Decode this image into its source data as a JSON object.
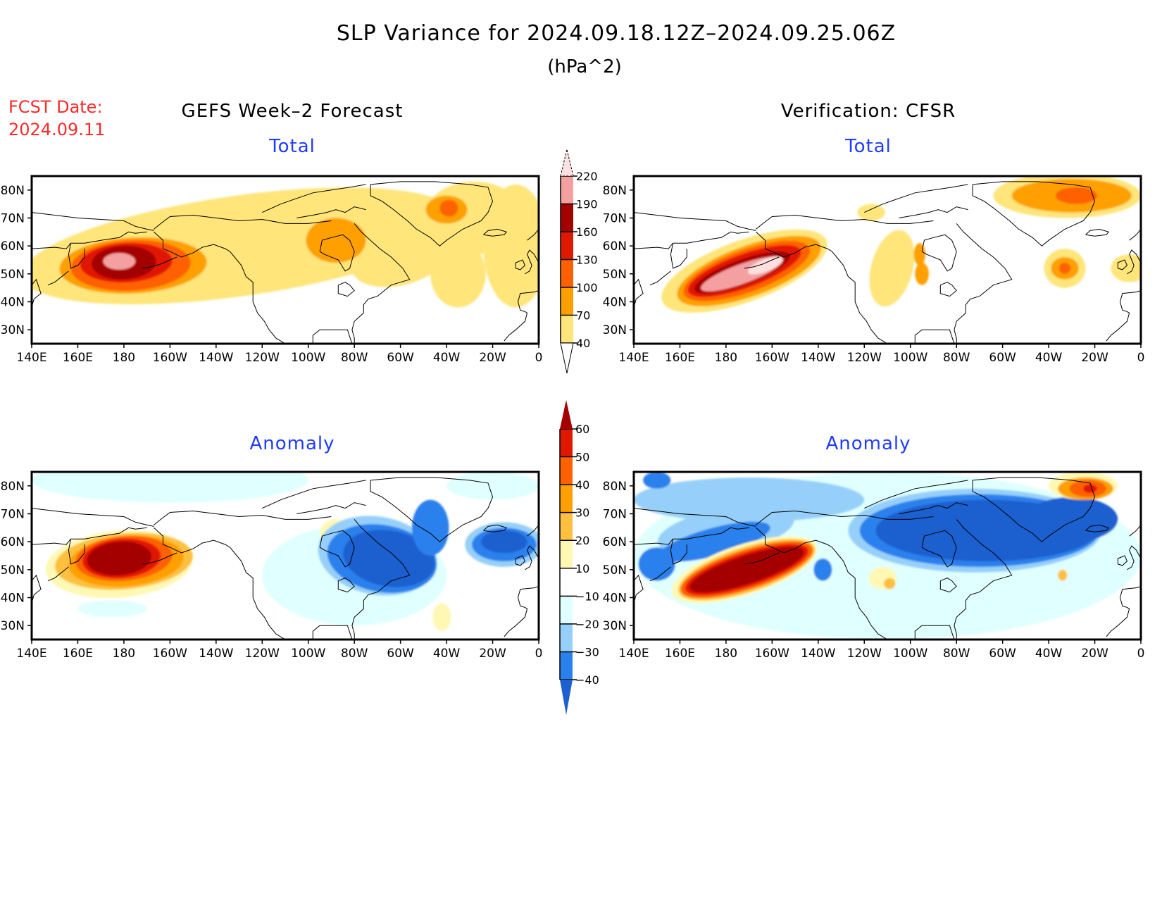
{
  "header": {
    "title": "SLP Variance for 2024.09.18.12Z–2024.09.25.06Z",
    "units": "(hPa^2)",
    "fcst_date_label": "FCST Date:",
    "fcst_date_value": "2024.09.11",
    "left_column_title": "GEFS Week–2 Forecast",
    "right_column_title": "Verification: CFSR"
  },
  "chart_data": [
    {
      "type": "heatmap",
      "panel": "forecast-total",
      "title": "Total",
      "column": "GEFS Week-2 Forecast",
      "field": "SLP variance (hPa^2)",
      "lon_ticks": [
        "140E",
        "160E",
        "180",
        "160W",
        "140W",
        "120W",
        "100W",
        "80W",
        "60W",
        "40W",
        "20W",
        "0"
      ],
      "lat_ticks": [
        "30N",
        "40N",
        "50N",
        "60N",
        "70N",
        "80N"
      ],
      "lon_range": [
        140,
        360
      ],
      "lat_range": [
        25,
        85
      ],
      "features": [
        {
          "name": "North Pacific max",
          "lon": 180,
          "lat": 54,
          "peak_bin": "190-220",
          "extent": "145E-135W, 38N-65N"
        },
        {
          "name": "Hudson Bay",
          "lon": -90,
          "lat": 62,
          "peak_bin": "70-100"
        },
        {
          "name": "Greenland",
          "lon": -40,
          "lat": 73,
          "peak_bin": "100-130"
        },
        {
          "name": "Arctic / N Atlantic band",
          "lon": -60,
          "lat": 65,
          "peak_bin": "40-70"
        }
      ]
    },
    {
      "type": "heatmap",
      "panel": "verification-total",
      "title": "Total",
      "column": "Verification: CFSR",
      "field": "SLP variance (hPa^2)",
      "lon_ticks": [
        "140E",
        "160E",
        "180",
        "160W",
        "140W",
        "120W",
        "100W",
        "80W",
        "60W",
        "40W",
        "20W",
        "0"
      ],
      "lat_ticks": [
        "30N",
        "40N",
        "50N",
        "60N",
        "70N",
        "80N"
      ],
      "lon_range": [
        140,
        360
      ],
      "lat_range": [
        25,
        85
      ],
      "features": [
        {
          "name": "Aleutian/Gulf of Alaska max",
          "lon": -170,
          "lat": 50,
          "peak_bin": ">220",
          "extent": "150E-140W, 40N-62N"
        },
        {
          "name": "Central Canada",
          "lon": -100,
          "lat": 53,
          "peak_bin": "70-100"
        },
        {
          "name": "Greenland Sea/Barents",
          "lon": -25,
          "lat": 77,
          "peak_bin": "100-130"
        },
        {
          "name": "Central N Atlantic",
          "lon": -35,
          "lat": 52,
          "peak_bin": "100-130"
        }
      ]
    },
    {
      "type": "heatmap",
      "panel": "forecast-anomaly",
      "title": "Anomaly",
      "column": "GEFS Week-2 Forecast",
      "field": "SLP variance anomaly (hPa^2)",
      "lon_ticks": [
        "140E",
        "160E",
        "180",
        "160W",
        "140W",
        "120W",
        "100W",
        "80W",
        "60W",
        "40W",
        "20W",
        "0"
      ],
      "lat_ticks": [
        "30N",
        "40N",
        "50N",
        "60N",
        "70N",
        "80N"
      ],
      "lon_range": [
        140,
        360
      ],
      "lat_range": [
        25,
        85
      ],
      "features": [
        {
          "name": "North Pacific positive",
          "lon": 178,
          "lat": 55,
          "peak_bin": ">60"
        },
        {
          "name": "Hudson Bay positive",
          "lon": -88,
          "lat": 65,
          "peak_bin": "20-30"
        },
        {
          "name": "Eastern Canada negative",
          "lon": -70,
          "lat": 52,
          "peak_bin": "<-40"
        },
        {
          "name": "NE Atlantic negative",
          "lon": -20,
          "lat": 60,
          "peak_bin": "<-40"
        },
        {
          "name": "W Atlantic positive",
          "lon": -45,
          "lat": 33,
          "peak_bin": "10-20"
        }
      ]
    },
    {
      "type": "heatmap",
      "panel": "verification-anomaly",
      "title": "Anomaly",
      "column": "Verification: CFSR",
      "field": "SLP variance anomaly (hPa^2)",
      "lon_ticks": [
        "140E",
        "160E",
        "180",
        "160W",
        "140W",
        "120W",
        "100W",
        "80W",
        "60W",
        "40W",
        "20W",
        "0"
      ],
      "lat_ticks": [
        "30N",
        "40N",
        "50N",
        "60N",
        "70N",
        "80N"
      ],
      "lon_range": [
        140,
        360
      ],
      "lat_range": [
        25,
        85
      ],
      "features": [
        {
          "name": "North Pacific positive band",
          "lon": -175,
          "lat": 50,
          "peak_bin": ">60"
        },
        {
          "name": "Canada/Greenland negative",
          "lon": -70,
          "lat": 62,
          "peak_bin": "<-40"
        },
        {
          "name": "Siberia negative",
          "lon": 170,
          "lat": 62,
          "peak_bin": "-40 to -30"
        },
        {
          "name": "Barents positive",
          "lon": -25,
          "lat": 80,
          "peak_bin": "50-60"
        }
      ]
    }
  ],
  "colorbars": {
    "total": {
      "levels": [
        40,
        70,
        100,
        130,
        160,
        190,
        220
      ],
      "labels": [
        "40",
        "70",
        "100",
        "130",
        "160",
        "190",
        "220"
      ],
      "colors": [
        "#ffe57a",
        "#ffa000",
        "#ff6000",
        "#e11800",
        "#a50000",
        "#f4a0a0",
        "#ffe0e0"
      ]
    },
    "anomaly": {
      "levels": [
        -40,
        -30,
        -20,
        -10,
        10,
        20,
        30,
        40,
        50,
        60
      ],
      "labels": [
        "−40",
        "−30",
        "−20",
        "−10",
        "10",
        "20",
        "30",
        "40",
        "50",
        "60"
      ],
      "colors": [
        "#1e5fcf",
        "#2a80ec",
        "#96d0fa",
        "#e0ffff",
        "#ffffff",
        "#fff8b4",
        "#ffc040",
        "#ffa000",
        "#ff6000",
        "#e11800",
        "#a50000"
      ]
    }
  }
}
